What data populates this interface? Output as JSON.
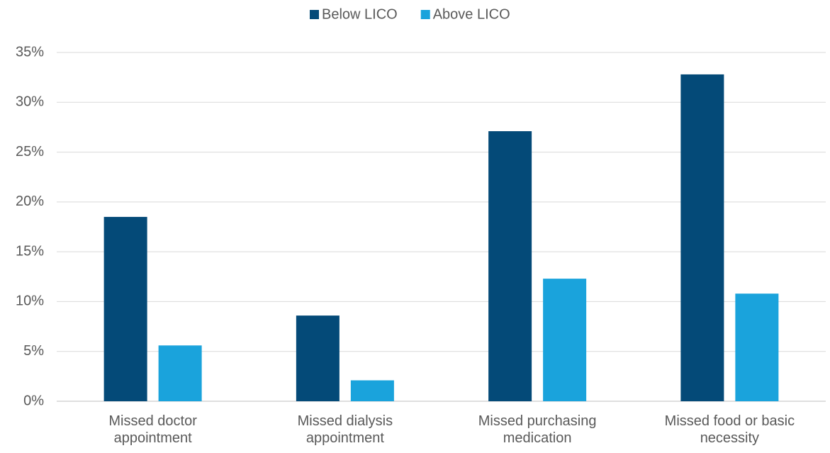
{
  "chart_data": {
    "type": "bar",
    "categories": [
      "Missed doctor appointment",
      "Missed dialysis appointment",
      "Missed purchasing medication",
      "Missed food or basic necessity"
    ],
    "series": [
      {
        "name": "Below LICO",
        "color": "#044a78",
        "values": [
          18.5,
          8.6,
          27.1,
          32.8
        ]
      },
      {
        "name": "Above LICO",
        "color": "#1aa3dc",
        "values": [
          5.6,
          2.1,
          12.3,
          10.8
        ]
      }
    ],
    "ylim": [
      0,
      35
    ],
    "yticks": [
      {
        "value": 0,
        "label": "0%"
      },
      {
        "value": 5,
        "label": "5%"
      },
      {
        "value": 10,
        "label": "10%"
      },
      {
        "value": 15,
        "label": "15%"
      },
      {
        "value": 20,
        "label": "20%"
      },
      {
        "value": 25,
        "label": "25%"
      },
      {
        "value": 30,
        "label": "30%"
      },
      {
        "value": 35,
        "label": "35%"
      }
    ],
    "grid": true,
    "legend": "top"
  }
}
